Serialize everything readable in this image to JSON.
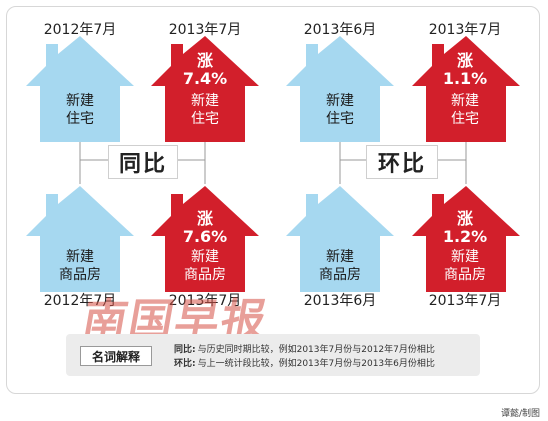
{
  "comparisons": [
    {
      "label": "同比",
      "top_left": {
        "date": "2012年7月",
        "line1": "新建",
        "line2": "住宅"
      },
      "top_right": {
        "date": "2013年7月",
        "rise": "涨",
        "pct": "7.4%",
        "line1": "新建",
        "line2": "住宅"
      },
      "bottom_left": {
        "date": "2012年7月",
        "line1": "新建",
        "line2": "商品房"
      },
      "bottom_right": {
        "date": "2013年7月",
        "rise": "涨",
        "pct": "7.6%",
        "line1": "新建",
        "line2": "商品房"
      }
    },
    {
      "label": "环比",
      "top_left": {
        "date": "2013年6月",
        "line1": "新建",
        "line2": "住宅"
      },
      "top_right": {
        "date": "2013年7月",
        "rise": "涨",
        "pct": "1.1%",
        "line1": "新建",
        "line2": "住宅"
      },
      "bottom_left": {
        "date": "2013年6月",
        "line1": "新建",
        "line2": "商品房"
      },
      "bottom_right": {
        "date": "2013年7月",
        "rise": "涨",
        "pct": "1.2%",
        "line1": "新建",
        "line2": "商品房"
      }
    }
  ],
  "logo": "南国早报",
  "glossary": {
    "title": "名词解释",
    "yoy_term": "同比:",
    "yoy_def": "与历史同时期比较，例如2013年7月份与2012年7月份相比",
    "mom_term": "环比:",
    "mom_def": "与上一统计段比较，例如2013年7月份与2013年6月份相比"
  },
  "credit": "谭懿/制图",
  "colors": {
    "blue_house": "#a6d8f0",
    "red_house": "#d21f2b",
    "connector": "#9a9a9a"
  }
}
